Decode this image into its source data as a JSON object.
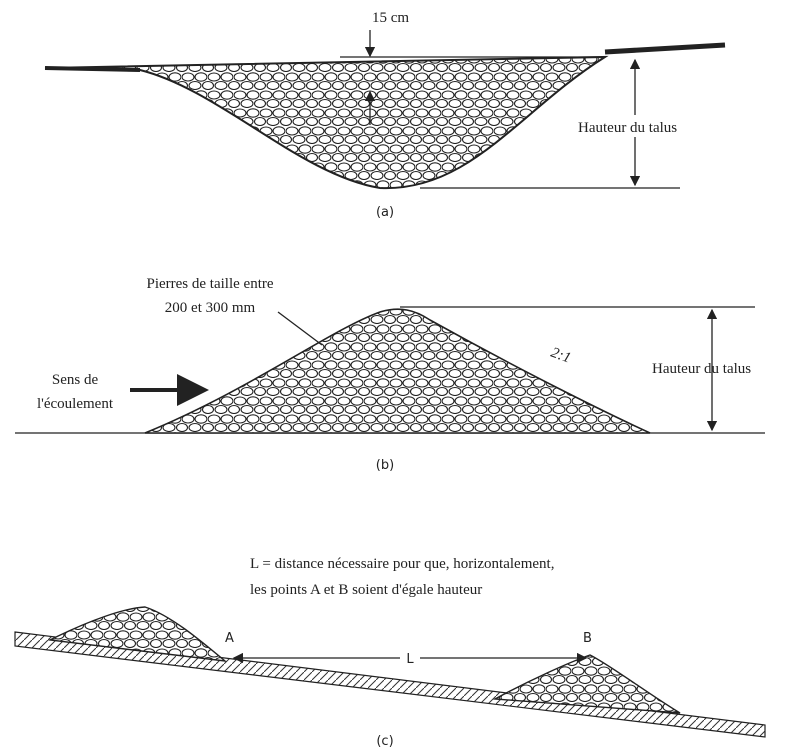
{
  "panel_a": {
    "depth_label": "15 cm",
    "height_label": "Hauteur du talus",
    "caption": "(a)"
  },
  "panel_b": {
    "stone_label": [
      "Pierres de taille entre",
      "200 et 300 mm"
    ],
    "slope_label": "2:1",
    "flow_label": [
      "Sens de",
      "l'écoulement"
    ],
    "height_label": "Hauteur du talus",
    "caption": "(b)"
  },
  "panel_c": {
    "note": [
      "L = distance nécessaire pour que, horizontalement,",
      "les points A et B soient d'égale hauteur"
    ],
    "point_a": "A",
    "point_b": "B",
    "distance_label": "L",
    "caption": "(c)"
  }
}
